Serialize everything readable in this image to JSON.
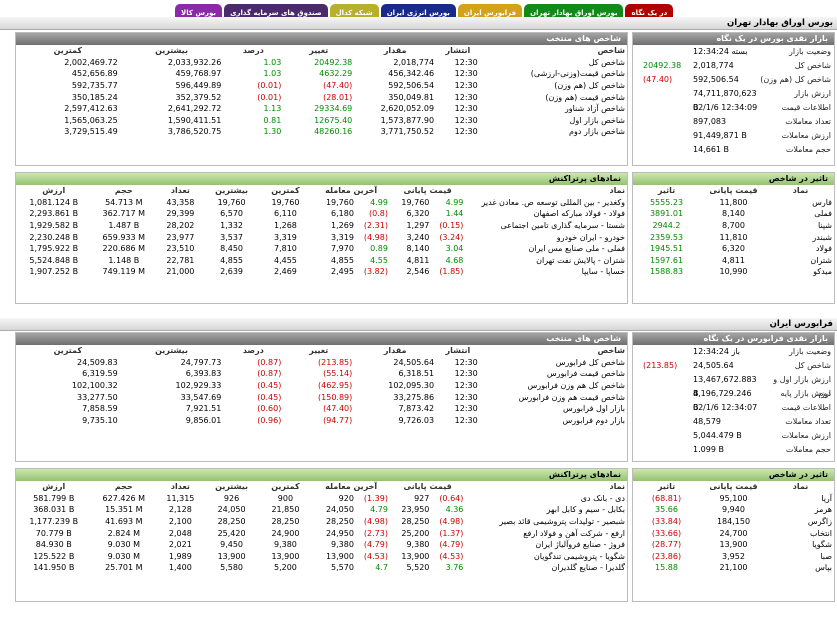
{
  "tabs": [
    {
      "label": "در یک نگاه",
      "color": "#b00000"
    },
    {
      "label": "بورس اوراق بهادار تهران",
      "color": "#128a1a"
    },
    {
      "label": "فرابورس ایران",
      "color": "#d2a21a"
    },
    {
      "label": "بورس انرژی ایران",
      "color": "#1a2a8a"
    },
    {
      "label": "شبکه کدال",
      "color": "#b6b02a"
    },
    {
      "label": "صندوق های سرمایه گذاری",
      "color": "#4a2a6a"
    },
    {
      "label": "بورس کالا",
      "color": "#8a2aa8"
    }
  ],
  "tse": {
    "title": "بورس اوراق بهادار تهران",
    "market_title": "بازار نقدی بورس در یک نگاه",
    "market": [
      {
        "label": "وضعیت بازار",
        "value": "بسته 12:34:24",
        "cls": ""
      },
      {
        "label": "شاخص کل",
        "value": "2,018,774",
        "change": "20492.38",
        "cls": "pos"
      },
      {
        "label": "شاخص کل (هم وزن)",
        "value": "592,506.54",
        "change": "(47.40)",
        "cls": "neg"
      },
      {
        "label": "ارزش بازار",
        "value": "74,711,870,623 B",
        "cls": ""
      },
      {
        "label": "اطلاعات قیمت",
        "value": "02/1/6 12:34:09",
        "cls": ""
      },
      {
        "label": "تعداد معاملات",
        "value": "897,083",
        "cls": ""
      },
      {
        "label": "ارزش معاملات",
        "value": "91,449,871 B",
        "cls": ""
      },
      {
        "label": "حجم معاملات",
        "value": "14,661 B",
        "cls": ""
      }
    ],
    "indices_title": "شاخص های منتخب",
    "indices_headers": [
      "شاخص",
      "انتشار",
      "مقدار",
      "تغییر",
      "درصد",
      "بیشترین",
      "کمترین"
    ],
    "indices": [
      [
        "شاخص کل",
        "12:30",
        "2,018,774",
        "20492.38",
        "1.03",
        "2,033,932.26",
        "2,002,469.72",
        "pos"
      ],
      [
        "شاخص قیمت(وزنی-ارزشی)",
        "12:30",
        "456,342.46",
        "4632.29",
        "1.03",
        "459,768.97",
        "452,656.89",
        "pos"
      ],
      [
        "شاخص کل (هم وزن)",
        "12:30",
        "592,506.54",
        "(47.40)",
        "(0.01)",
        "596,449.89",
        "592,735.77",
        "neg"
      ],
      [
        "شاخص قیمت (هم وزن)",
        "12:30",
        "350,049.81",
        "(28.01)",
        "(0.01)",
        "352,379.52",
        "350,185.24",
        "neg"
      ],
      [
        "شاخص آزاد شناور",
        "12:30",
        "2,620,052.09",
        "29334.69",
        "1.13",
        "2,641,292.72",
        "2,597,412.63",
        "pos"
      ],
      [
        "شاخص بازار اول",
        "12:30",
        "1,573,877.90",
        "12675.40",
        "0.81",
        "1,590,411.51",
        "1,565,063.25",
        "pos"
      ],
      [
        "شاخص بازار دوم",
        "12:30",
        "3,771,750.52",
        "48260.16",
        "1.30",
        "3,786,520.75",
        "3,729,515.49",
        "pos"
      ]
    ],
    "impact_title": "تاثیر در شاخص",
    "impact_headers": [
      "نماد",
      "قیمت پایانی",
      "تاثیر"
    ],
    "impact": [
      [
        "فارس",
        "11,800",
        "5555.23",
        "pos"
      ],
      [
        "فملی",
        "8,140",
        "3891.01",
        "pos"
      ],
      [
        "شپنا",
        "8,700",
        "2944.2",
        "pos"
      ],
      [
        "شبندر",
        "11,810",
        "2359.53",
        "pos"
      ],
      [
        "فولاد",
        "6,320",
        "1945.51",
        "pos"
      ],
      [
        "شتران",
        "4,811",
        "1597.61",
        "pos"
      ],
      [
        "میدکو",
        "10,990",
        "1588.83",
        "pos"
      ]
    ],
    "top_title": "نمادهای پرتراکنش",
    "top_headers": [
      "نماد",
      "قیمت پایانی",
      "آخرین معامله",
      "کمترین",
      "بیشترین",
      "تعداد",
      "حجم",
      "ارزش"
    ],
    "top": [
      [
        "وکغدیر - بین المللی توسعه ص. معادن غدیر",
        "19,760",
        "4.99",
        "19,760",
        "4.99",
        "19,760",
        "19,760",
        "43,358",
        "54.713 M",
        "1,081.124 B",
        "pos",
        "pos"
      ],
      [
        "فولاد - فولاد مبارکه اصفهان",
        "6,320",
        "1.44",
        "6,180",
        "(0.8)",
        "6,110",
        "6,570",
        "29,399",
        "362.717 M",
        "2,293.861 B",
        "pos",
        "neg"
      ],
      [
        "شستا - سرمایه گذاری تامین اجتماعی",
        "1,297",
        "(0.15)",
        "1,269",
        "(2.31)",
        "1,268",
        "1,332",
        "28,202",
        "1.487 B",
        "1,929.582 B",
        "neg",
        "neg"
      ],
      [
        "خودرو - ایران خودرو",
        "3,240",
        "(3.24)",
        "3,319",
        "(4.98)",
        "3,319",
        "3,537",
        "23,977",
        "659.933 M",
        "2,230.248 B",
        "neg",
        "neg"
      ],
      [
        "فملی - ملی صنایع مس ایران",
        "8,140",
        "3.04",
        "7,970",
        "0.89",
        "7,810",
        "8,450",
        "23,510",
        "220.686 M",
        "1,795.922 B",
        "pos",
        "pos"
      ],
      [
        "شتران - پالایش نفت تهران",
        "4,811",
        "4.68",
        "4,855",
        "4.55",
        "4,455",
        "4,855",
        "22,781",
        "1.148 B",
        "5,524.848 B",
        "pos",
        "pos"
      ],
      [
        "خساپا - سایپا",
        "2,546",
        "(1.85)",
        "2,495",
        "(3.82)",
        "2,469",
        "2,639",
        "21,000",
        "749.119 M",
        "1,907.252 B",
        "neg",
        "neg"
      ]
    ]
  },
  "ifb": {
    "title": "فرابورس ایران",
    "market_title": "بازار نقدی فرابورس در یک نگاه",
    "market": [
      {
        "label": "وضعیت بازار",
        "value": "باز 12:34:24",
        "cls": ""
      },
      {
        "label": "شاخص کل",
        "value": "24,505.64",
        "change": "(213.85)",
        "cls": "neg"
      },
      {
        "label": "ارزش بازار اول و دوم",
        "value": "13,467,672.883 B",
        "cls": ""
      },
      {
        "label": "ارزش بازار پایه",
        "value": "4,196,729.246 B",
        "cls": ""
      },
      {
        "label": "اطلاعات قیمت",
        "value": "02/1/6 12:34:07",
        "cls": ""
      },
      {
        "label": "تعداد معاملات",
        "value": "48,579",
        "cls": ""
      },
      {
        "label": "ارزش معاملات",
        "value": "5,044.479 B",
        "cls": ""
      },
      {
        "label": "حجم معاملات",
        "value": "1.099 B",
        "cls": ""
      }
    ],
    "indices_title": "شاخص های منتخب",
    "indices_headers": [
      "شاخص",
      "انتشار",
      "مقدار",
      "تغییر",
      "درصد",
      "بیشترین",
      "کمترین"
    ],
    "indices": [
      [
        "شاخص کل فرابورس",
        "12:30",
        "24,505.64",
        "(213.85)",
        "(0.87)",
        "24,797.73",
        "24,509.83",
        "neg"
      ],
      [
        "شاخص قیمت فرابورس",
        "12:30",
        "6,318.51",
        "(55.14)",
        "(0.87)",
        "6,393.83",
        "6,319.59",
        "neg"
      ],
      [
        "شاخص کل هم وزن فرابورس",
        "12:30",
        "102,095.30",
        "(462.95)",
        "(0.45)",
        "102,929.33",
        "102,100.32",
        "neg"
      ],
      [
        "شاخص قیمت هم وزن فرابورس",
        "12:30",
        "33,275.86",
        "(150.89)",
        "(0.45)",
        "33,547.69",
        "33,277.50",
        "neg"
      ],
      [
        "بازار اول فرابورس",
        "12:30",
        "7,873.42",
        "(47.40)",
        "(0.60)",
        "7,921.51",
        "7,858.59",
        "neg"
      ],
      [
        "بازار دوم فرابورس",
        "12:30",
        "9,726.03",
        "(94.77)",
        "(0.96)",
        "9,856.01",
        "9,735.10",
        "neg"
      ]
    ],
    "impact_title": "تاثیر در شاخص",
    "impact_headers": [
      "نماد",
      "قیمت پایانی",
      "تاثیر"
    ],
    "impact": [
      [
        "آریا",
        "95,100",
        "(68.81)",
        "neg"
      ],
      [
        "هرمز",
        "9,940",
        "35.66",
        "pos"
      ],
      [
        "زاگرس",
        "184,150",
        "(33.84)",
        "neg"
      ],
      [
        "انتخاب",
        "24,700",
        "(33.66)",
        "neg"
      ],
      [
        "شگویا",
        "13,900",
        "(28.77)",
        "neg"
      ],
      [
        "صبا",
        "3,952",
        "(23.86)",
        "neg"
      ],
      [
        "بپاس",
        "21,100",
        "15.88",
        "pos"
      ]
    ],
    "top_title": "نمادهای پرتراکنش",
    "top_headers": [
      "نماد",
      "قیمت پایانی",
      "آخرین معامله",
      "کمترین",
      "بیشترین",
      "تعداد",
      "حجم",
      "ارزش"
    ],
    "top": [
      [
        "دی - بانک دی",
        "927",
        "(0.64)",
        "920",
        "(1.39)",
        "900",
        "926",
        "11,315",
        "627.426 M",
        "581.799 B",
        "neg",
        "neg"
      ],
      [
        "بکابل - سیم و کابل ابهر",
        "23,950",
        "4.36",
        "24,050",
        "4.79",
        "21,850",
        "24,050",
        "2,128",
        "15.351 M",
        "368.031 B",
        "pos",
        "pos"
      ],
      [
        "شبصیر - تولیدات پتروشیمی قائد بصیر",
        "28,250",
        "(4.98)",
        "28,250",
        "(4.98)",
        "28,250",
        "28,250",
        "2,100",
        "41.693 M",
        "1,177.239 B",
        "neg",
        "neg"
      ],
      [
        "ارفع - شرکت آهن و فولاد ارفع",
        "25,200",
        "(1.37)",
        "24,950",
        "(2.73)",
        "24,900",
        "25,420",
        "2,048",
        "2.824 M",
        "70.779 B",
        "neg",
        "neg"
      ],
      [
        "فروژ - صنایع فروآلیاژ ایران",
        "9,380",
        "(4.79)",
        "9,380",
        "(4.79)",
        "9,380",
        "9,450",
        "2,021",
        "9.030 M",
        "84.930 B",
        "neg",
        "neg"
      ],
      [
        "شگویا - پتروشیمی تندگویان",
        "13,900",
        "(4.53)",
        "13,900",
        "(4.53)",
        "13,900",
        "13,900",
        "1,989",
        "9.030 M",
        "125.522 B",
        "neg",
        "neg"
      ],
      [
        "گلدیرا - صنایع گلدیران",
        "5,520",
        "3.76",
        "5,570",
        "4.7",
        "5,200",
        "5,580",
        "1,400",
        "25.701 M",
        "141.950 B",
        "pos",
        "pos"
      ]
    ]
  }
}
